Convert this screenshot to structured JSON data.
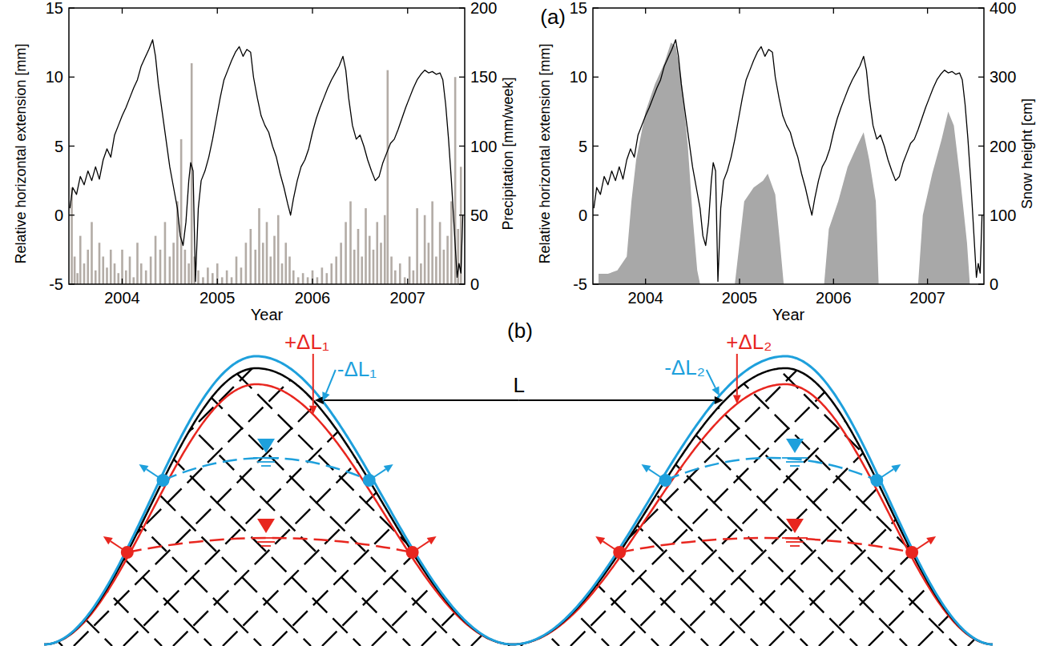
{
  "panel_a_label": "(a)",
  "chart_data": [
    {
      "type": "line",
      "xlabel": "Year",
      "ylabel": "Relative horizontal extension [mm]",
      "y2label": "Precipitation [mm/week]",
      "xlim": [
        2003.44,
        2007.6
      ],
      "xticks": [
        2004,
        2005,
        2006,
        2007
      ],
      "ylim": [
        -5,
        15
      ],
      "yticks": [
        -5,
        0,
        5,
        10,
        15
      ],
      "y2lim": [
        0,
        200
      ],
      "y2ticks": [
        0,
        50,
        100,
        150,
        200
      ],
      "series": [
        {
          "type": "bar",
          "color": "#b3aca6",
          "axis": "y2",
          "x": [
            2003.47,
            2003.5,
            2003.53,
            2003.56,
            2003.6,
            2003.64,
            2003.68,
            2003.72,
            2003.76,
            2003.8,
            2003.84,
            2003.88,
            2003.92,
            2003.96,
            2004.0,
            2004.04,
            2004.08,
            2004.12,
            2004.16,
            2004.2,
            2004.25,
            2004.3,
            2004.35,
            2004.4,
            2004.45,
            2004.5,
            2004.54,
            2004.58,
            2004.62,
            2004.66,
            2004.7,
            2004.73,
            2004.76,
            2004.8,
            2004.85,
            2004.9,
            2004.95,
            2005.0,
            2005.05,
            2005.1,
            2005.15,
            2005.2,
            2005.25,
            2005.3,
            2005.35,
            2005.4,
            2005.44,
            2005.48,
            2005.52,
            2005.56,
            2005.6,
            2005.64,
            2005.68,
            2005.72,
            2005.76,
            2005.8,
            2005.85,
            2005.9,
            2005.95,
            2006.0,
            2006.05,
            2006.1,
            2006.15,
            2006.2,
            2006.25,
            2006.3,
            2006.35,
            2006.4,
            2006.44,
            2006.48,
            2006.52,
            2006.56,
            2006.6,
            2006.64,
            2006.68,
            2006.72,
            2006.76,
            2006.79,
            2006.83,
            2006.87,
            2006.92,
            2006.97,
            2007.02,
            2007.06,
            2007.1,
            2007.14,
            2007.18,
            2007.22,
            2007.26,
            2007.3,
            2007.34,
            2007.38,
            2007.42,
            2007.46,
            2007.5,
            2007.53,
            2007.56
          ],
          "values": [
            70,
            20,
            8,
            35,
            15,
            25,
            45,
            10,
            30,
            20,
            12,
            25,
            15,
            8,
            25,
            10,
            20,
            5,
            30,
            15,
            10,
            20,
            35,
            25,
            45,
            20,
            30,
            60,
            105,
            25,
            15,
            160,
            20,
            10,
            5,
            12,
            8,
            15,
            5,
            10,
            5,
            20,
            12,
            30,
            40,
            25,
            55,
            30,
            45,
            20,
            35,
            50,
            15,
            30,
            20,
            10,
            5,
            8,
            5,
            10,
            5,
            12,
            8,
            15,
            20,
            30,
            45,
            60,
            25,
            40,
            20,
            55,
            35,
            25,
            45,
            30,
            50,
            155,
            20,
            10,
            15,
            5,
            20,
            10,
            55,
            15,
            50,
            30,
            60,
            20,
            45,
            25,
            35,
            60,
            150,
            40,
            85
          ]
        },
        {
          "type": "line",
          "color": "#000000",
          "x": [
            2003.45,
            2003.48,
            2003.52,
            2003.56,
            2003.6,
            2003.64,
            2003.68,
            2003.72,
            2003.76,
            2003.8,
            2003.84,
            2003.88,
            2003.92,
            2003.96,
            2004.0,
            2004.04,
            2004.08,
            2004.12,
            2004.16,
            2004.2,
            2004.24,
            2004.28,
            2004.32,
            2004.35,
            2004.38,
            2004.42,
            2004.46,
            2004.5,
            2004.54,
            2004.58,
            2004.61,
            2004.64,
            2004.67,
            2004.7,
            2004.72,
            2004.745,
            2004.77,
            2004.8,
            2004.83,
            2004.87,
            2004.91,
            2004.95,
            2004.99,
            2005.03,
            2005.07,
            2005.11,
            2005.15,
            2005.19,
            2005.23,
            2005.27,
            2005.31,
            2005.35,
            2005.38,
            2005.42,
            2005.46,
            2005.5,
            2005.54,
            2005.58,
            2005.62,
            2005.66,
            2005.7,
            2005.74,
            2005.77,
            2005.8,
            2005.84,
            2005.88,
            2005.92,
            2005.96,
            2006.0,
            2006.04,
            2006.08,
            2006.12,
            2006.16,
            2006.2,
            2006.24,
            2006.28,
            2006.32,
            2006.35,
            2006.38,
            2006.42,
            2006.46,
            2006.5,
            2006.54,
            2006.58,
            2006.62,
            2006.66,
            2006.7,
            2006.74,
            2006.78,
            2006.82,
            2006.86,
            2006.9,
            2006.94,
            2006.98,
            2007.02,
            2007.06,
            2007.1,
            2007.14,
            2007.18,
            2007.22,
            2007.26,
            2007.3,
            2007.34,
            2007.37,
            2007.4,
            2007.43,
            2007.46,
            2007.49,
            2007.52,
            2007.54,
            2007.56,
            2007.58
          ],
          "values": [
            0.5,
            2,
            1.5,
            2.8,
            2.2,
            3.2,
            2.5,
            3.5,
            2.6,
            4,
            4.8,
            4.2,
            5.8,
            6.5,
            7.2,
            7.8,
            8.5,
            9.2,
            9.8,
            10.8,
            11.4,
            12,
            12.7,
            11.5,
            9.5,
            7.5,
            5.5,
            3.5,
            2,
            0.5,
            -1.5,
            -2.2,
            -0.5,
            2.5,
            3.8,
            3.2,
            -4.8,
            0.5,
            2.5,
            3.2,
            4.2,
            5.5,
            7,
            8.5,
            9.8,
            10.5,
            11.2,
            11.8,
            12.2,
            11.5,
            12,
            11.8,
            10,
            8.5,
            7.2,
            6.5,
            6,
            5,
            4.2,
            3,
            2,
            0.8,
            0,
            1.2,
            2.5,
            3.5,
            4,
            4.8,
            6,
            7,
            7.8,
            8.5,
            9.2,
            9.8,
            10.3,
            10.8,
            11.5,
            10.5,
            8.5,
            6.5,
            5.5,
            5.8,
            5,
            4,
            3.2,
            2.5,
            2.8,
            3.8,
            4.5,
            5.2,
            5.5,
            6.2,
            7,
            7.8,
            8.5,
            9.2,
            9.8,
            10.2,
            10.5,
            10.3,
            10.4,
            10.2,
            10.3,
            9.8,
            8,
            5.5,
            2.5,
            -1,
            -4.5,
            -3.5,
            -4.2,
            0
          ]
        }
      ]
    },
    {
      "type": "line",
      "xlabel": "Year",
      "ylabel": "Relative horizontal extension [mm]",
      "y2label": "Snow height [cm]",
      "xlim": [
        2003.44,
        2007.6
      ],
      "xticks": [
        2004,
        2005,
        2006,
        2007
      ],
      "ylim": [
        -5,
        15
      ],
      "yticks": [
        -5,
        0,
        5,
        10,
        15
      ],
      "y2lim": [
        0,
        400
      ],
      "y2ticks": [
        0,
        100,
        200,
        300,
        400
      ],
      "series": [
        {
          "type": "area",
          "color": "#a8a8a8",
          "axis": "y2",
          "x": [
            2003.5,
            2003.6,
            2003.7,
            2003.8,
            2003.85,
            2003.9,
            2004.0,
            2004.1,
            2004.2,
            2004.27,
            2004.32,
            2004.38,
            2004.45,
            2004.5,
            2004.55,
            2004.58,
            2004.75,
            2004.95,
            2005.0,
            2005.05,
            2005.15,
            2005.25,
            2005.3,
            2005.38,
            2005.43,
            2005.47,
            2005.7,
            2005.9,
            2005.95,
            2006.05,
            2006.15,
            2006.25,
            2006.32,
            2006.38,
            2006.45,
            2006.48,
            2006.7,
            2006.9,
            2006.95,
            2007.05,
            2007.15,
            2007.22,
            2007.28,
            2007.35,
            2007.42,
            2007.45
          ],
          "values": [
            15,
            15,
            20,
            40,
            120,
            180,
            250,
            290,
            320,
            350,
            345,
            300,
            200,
            100,
            20,
            0,
            null,
            0,
            60,
            120,
            140,
            150,
            160,
            130,
            60,
            0,
            null,
            0,
            80,
            120,
            170,
            200,
            220,
            180,
            120,
            0,
            null,
            0,
            100,
            160,
            210,
            250,
            230,
            150,
            60,
            0
          ]
        },
        {
          "type": "line",
          "color": "#000000",
          "x": [
            2003.45,
            2003.48,
            2003.52,
            2003.56,
            2003.6,
            2003.64,
            2003.68,
            2003.72,
            2003.76,
            2003.8,
            2003.84,
            2003.88,
            2003.92,
            2003.96,
            2004.0,
            2004.04,
            2004.08,
            2004.12,
            2004.16,
            2004.2,
            2004.24,
            2004.28,
            2004.32,
            2004.35,
            2004.38,
            2004.42,
            2004.46,
            2004.5,
            2004.54,
            2004.58,
            2004.61,
            2004.64,
            2004.67,
            2004.7,
            2004.72,
            2004.745,
            2004.77,
            2004.8,
            2004.83,
            2004.87,
            2004.91,
            2004.95,
            2004.99,
            2005.03,
            2005.07,
            2005.11,
            2005.15,
            2005.19,
            2005.23,
            2005.27,
            2005.31,
            2005.35,
            2005.38,
            2005.42,
            2005.46,
            2005.5,
            2005.54,
            2005.58,
            2005.62,
            2005.66,
            2005.7,
            2005.74,
            2005.77,
            2005.8,
            2005.84,
            2005.88,
            2005.92,
            2005.96,
            2006.0,
            2006.04,
            2006.08,
            2006.12,
            2006.16,
            2006.2,
            2006.24,
            2006.28,
            2006.32,
            2006.35,
            2006.38,
            2006.42,
            2006.46,
            2006.5,
            2006.54,
            2006.58,
            2006.62,
            2006.66,
            2006.7,
            2006.74,
            2006.78,
            2006.82,
            2006.86,
            2006.9,
            2006.94,
            2006.98,
            2007.02,
            2007.06,
            2007.1,
            2007.14,
            2007.18,
            2007.22,
            2007.26,
            2007.3,
            2007.34,
            2007.37,
            2007.4,
            2007.43,
            2007.46,
            2007.49,
            2007.52,
            2007.54,
            2007.56,
            2007.58
          ],
          "values": [
            0.5,
            2,
            1.5,
            2.8,
            2.2,
            3.2,
            2.5,
            3.5,
            2.6,
            4,
            4.8,
            4.2,
            5.8,
            6.5,
            7.2,
            7.8,
            8.5,
            9.2,
            9.8,
            10.8,
            11.4,
            12,
            12.7,
            11.5,
            9.5,
            7.5,
            5.5,
            3.5,
            2,
            0.5,
            -1.5,
            -2.2,
            -0.5,
            2.5,
            3.8,
            3.2,
            -4.8,
            0.5,
            2.5,
            3.2,
            4.2,
            5.5,
            7,
            8.5,
            9.8,
            10.5,
            11.2,
            11.8,
            12.2,
            11.5,
            12,
            11.8,
            10,
            8.5,
            7.2,
            6.5,
            6,
            5,
            4.2,
            3,
            2,
            0.8,
            0,
            1.2,
            2.5,
            3.5,
            4,
            4.8,
            6,
            7,
            7.8,
            8.5,
            9.2,
            9.8,
            10.3,
            10.8,
            11.5,
            10.5,
            8.5,
            6.5,
            5.5,
            5.8,
            5,
            4,
            3.2,
            2.5,
            2.8,
            3.8,
            4.5,
            5.2,
            5.5,
            6.2,
            7,
            7.8,
            8.5,
            9.2,
            9.8,
            10.2,
            10.5,
            10.3,
            10.4,
            10.2,
            10.3,
            9.8,
            8,
            5.5,
            2.5,
            -1,
            -4.5,
            -3.5,
            -4.2,
            0
          ]
        }
      ]
    }
  ],
  "diagram": {
    "label": "(b)",
    "length_label": "L",
    "annotations": [
      "+ΔL₁",
      "-ΔL₁",
      "+ΔL₂",
      "-ΔL₂"
    ]
  }
}
